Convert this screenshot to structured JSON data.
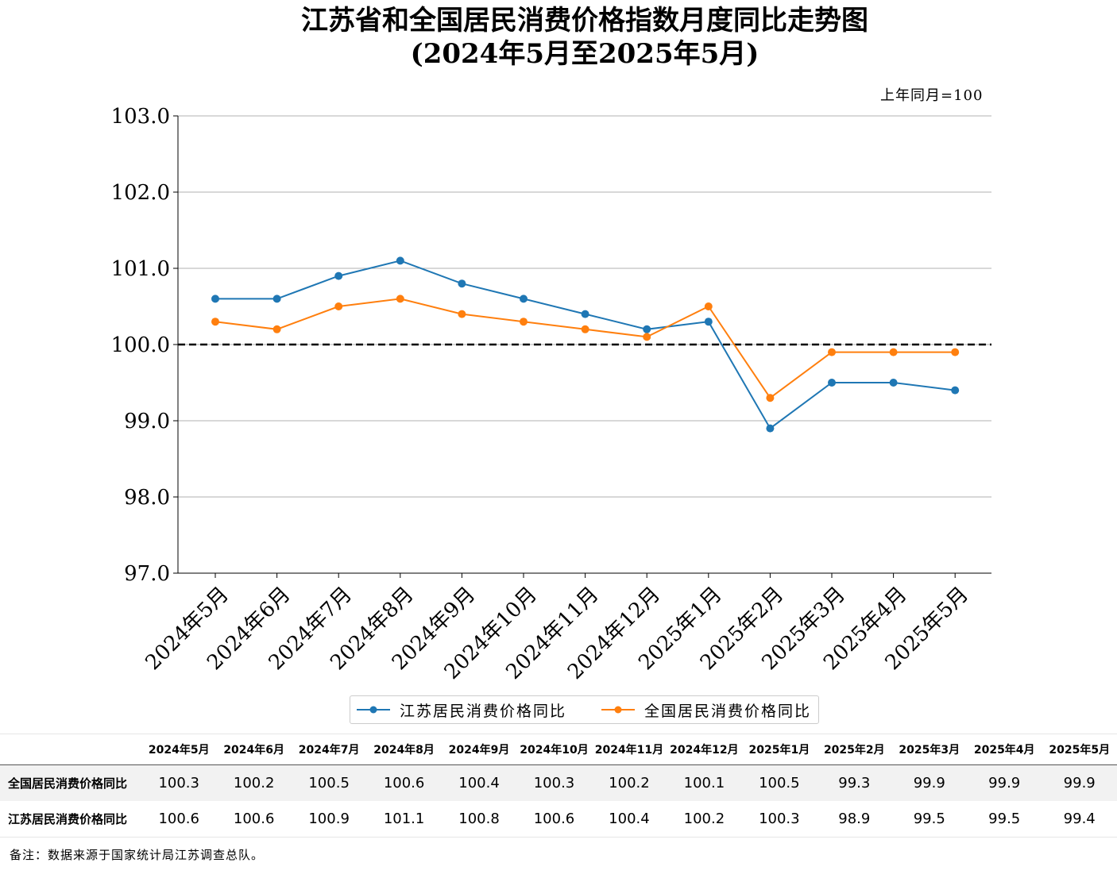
{
  "header": {
    "title": "江苏省和全国居民消费价格指数月度同比走势图",
    "subtitle": "(2024年5月至2025年5月)",
    "unit_note": "上年同月=100"
  },
  "chart_data": {
    "type": "line",
    "categories": [
      "2024年5月",
      "2024年6月",
      "2024年7月",
      "2024年8月",
      "2024年9月",
      "2024年10月",
      "2024年11月",
      "2024年12月",
      "2025年1月",
      "2025年2月",
      "2025年3月",
      "2025年4月",
      "2025年5月"
    ],
    "series": [
      {
        "name": "江苏居民消费价格同比",
        "color": "#1f77b4",
        "values": [
          100.6,
          100.6,
          100.9,
          101.1,
          100.8,
          100.6,
          100.4,
          100.2,
          100.3,
          98.9,
          99.5,
          99.5,
          99.4
        ]
      },
      {
        "name": "全国居民消费价格同比",
        "color": "#ff7f0e",
        "values": [
          100.3,
          100.2,
          100.5,
          100.6,
          100.4,
          100.3,
          100.2,
          100.1,
          100.5,
          99.3,
          99.9,
          99.9,
          99.9
        ]
      }
    ],
    "ylim": [
      97.0,
      103.0
    ],
    "yticks": [
      "97.0",
      "98.0",
      "99.0",
      "100.0",
      "101.0",
      "102.0",
      "103.0"
    ],
    "reference_line": 100.0,
    "grid": "horizontal",
    "legend": "bottom-center"
  },
  "table": {
    "columns": [
      "2024年5月",
      "2024年6月",
      "2024年7月",
      "2024年8月",
      "2024年9月",
      "2024年10月",
      "2024年11月",
      "2024年12月",
      "2025年1月",
      "2025年2月",
      "2025年3月",
      "2025年4月",
      "2025年5月"
    ],
    "rows": [
      {
        "label": "全国居民消费价格同比",
        "values": [
          "100.3",
          "100.2",
          "100.5",
          "100.6",
          "100.4",
          "100.3",
          "100.2",
          "100.1",
          "100.5",
          "99.3",
          "99.9",
          "99.9",
          "99.9"
        ]
      },
      {
        "label": "江苏居民消费价格同比",
        "values": [
          "100.6",
          "100.6",
          "100.9",
          "101.1",
          "100.8",
          "100.6",
          "100.4",
          "100.2",
          "100.3",
          "98.9",
          "99.5",
          "99.5",
          "99.4"
        ]
      }
    ]
  },
  "footer": {
    "note": "备注：数据来源于国家统计局江苏调查总队。"
  }
}
